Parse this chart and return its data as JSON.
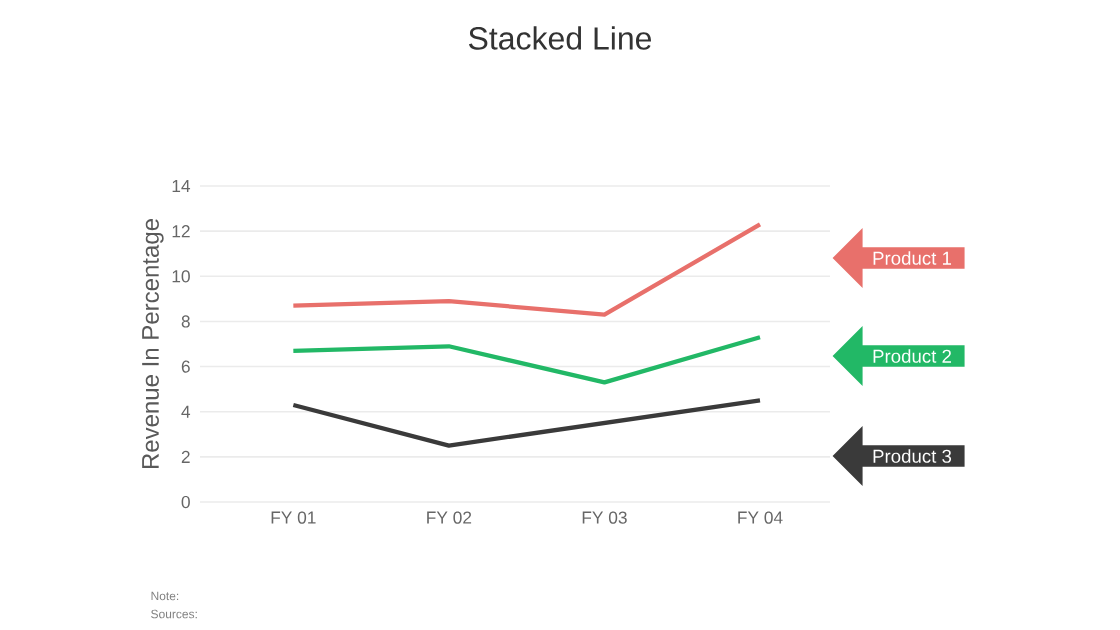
{
  "chart_data": {
    "type": "line",
    "title": "Stacked Line",
    "ylabel": "Revenue In Percentage",
    "categories": [
      "FY 01",
      "FY 02",
      "FY 03",
      "FY 04"
    ],
    "series": [
      {
        "name": "Product 1",
        "color": "#e8706b",
        "values": [
          8.7,
          8.9,
          8.3,
          12.3
        ]
      },
      {
        "name": "Product 2",
        "color": "#22b866",
        "values": [
          6.7,
          6.9,
          5.3,
          7.3
        ]
      },
      {
        "name": "Product 3",
        "color": "#3a3a3a",
        "values": [
          4.3,
          2.5,
          3.5,
          4.5
        ]
      }
    ],
    "ylim": [
      0,
      14
    ],
    "yticks": [
      0,
      2,
      4,
      6,
      8,
      10,
      12,
      14
    ],
    "grid": "y",
    "legend": "right",
    "annotations": [
      "Note:",
      "Sources:"
    ]
  }
}
